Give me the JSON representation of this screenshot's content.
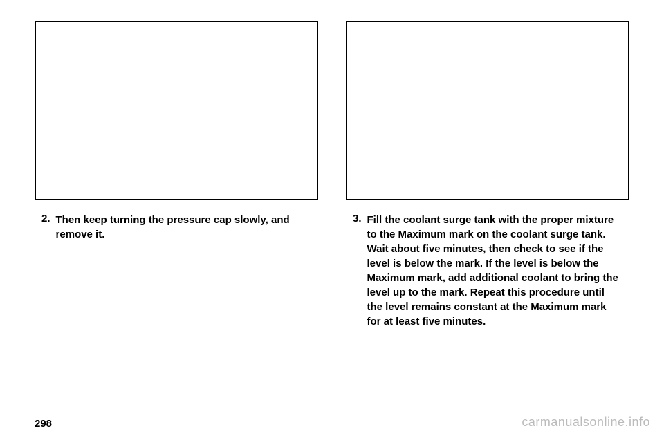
{
  "left_column": {
    "step_number": "2.",
    "step_text": "Then keep turning the pressure cap slowly, and remove it."
  },
  "right_column": {
    "step_number": "3.",
    "step_text": "Fill the coolant surge tank with the proper mixture to the Maximum mark on the coolant surge tank. Wait about five minutes, then check to see if the level is below the mark. If the level is below the Maximum mark, add additional coolant to bring the level up to the mark. Repeat this procedure until the level remains constant at the Maximum mark for at least five minutes."
  },
  "footer": {
    "page_number": "298",
    "watermark": "carmanualsonline.info"
  }
}
